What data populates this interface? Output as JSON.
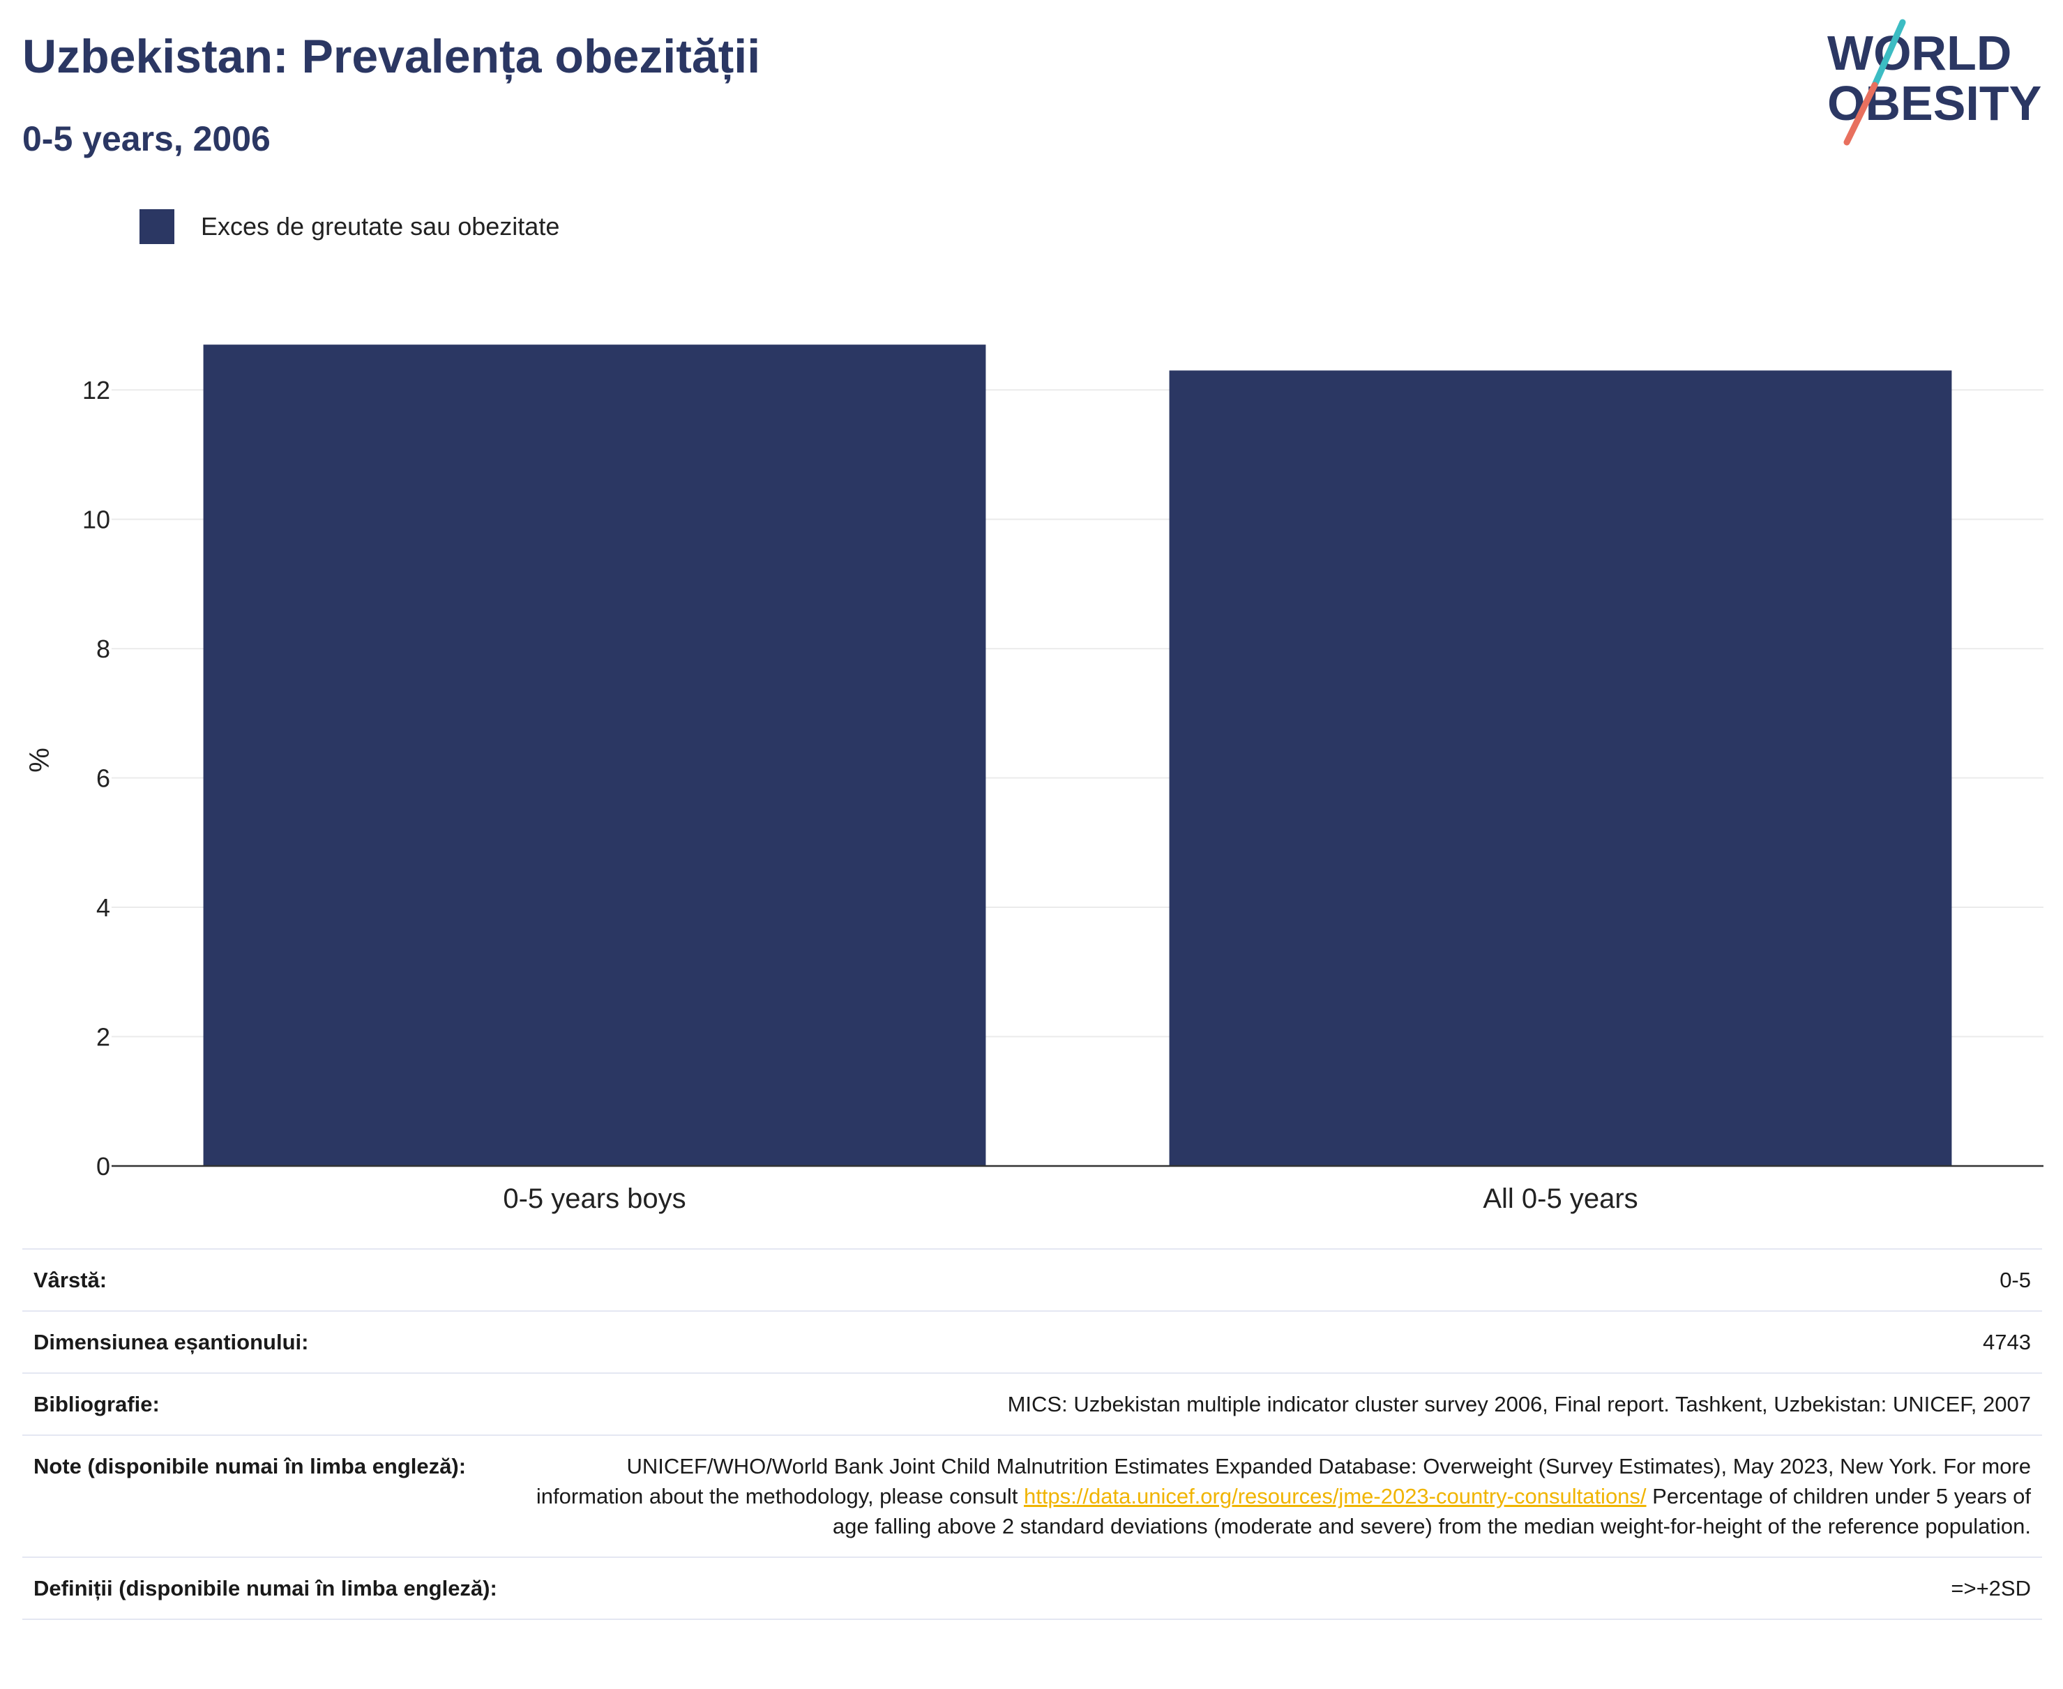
{
  "header": {
    "title": "Uzbekistan: Prevalența obezității",
    "subtitle": "0-5 years, 2006"
  },
  "logo": {
    "line1": "WORLD",
    "line2": "OBESITY",
    "colors": {
      "text": "#2b3763",
      "slash_top": "#3cbcc3",
      "slash_bottom": "#e8705e"
    }
  },
  "colors": {
    "bar": "#2b3763",
    "grid": "#ebebeb",
    "axis": "#333333",
    "link": "#f0b400"
  },
  "chart_data": {
    "type": "bar",
    "categories": [
      "0-5 years boys",
      "All 0-5 years"
    ],
    "series": [
      {
        "name": "Exces de greutate sau obezitate",
        "values": [
          12.7,
          12.3
        ]
      }
    ],
    "xlabel": "",
    "ylabel": "%",
    "ylim": [
      0,
      13.5
    ],
    "yticks": [
      0,
      2,
      4,
      6,
      8,
      10,
      12
    ],
    "grid": true,
    "legend_position": "top-left"
  },
  "info": {
    "rows": [
      {
        "key": "Vârstă:",
        "value": "0-5"
      },
      {
        "key": "Dimensiunea eșantionului:",
        "value": "4743"
      },
      {
        "key": "Bibliografie:",
        "value": "MICS: Uzbekistan multiple indicator cluster survey 2006, Final report. Tashkent, Uzbekistan: UNICEF, 2007"
      },
      {
        "key": "Note (disponibile numai în limba engleză):",
        "value_before_link": "UNICEF/WHO/World Bank Joint Child Malnutrition Estimates Expanded Database: Overweight (Survey Estimates), May 2023, New York. For more information about the methodology, please consult ",
        "link": "https://data.unicef.org/resources/jme-2023-country-consultations/",
        "value_after_link": " Percentage of children under 5 years of age falling above 2 standard deviations (moderate and severe) from the median weight-for-height of the reference population."
      },
      {
        "key": "Definiții (disponibile numai în limba engleză):",
        "value": "=>+2SD"
      }
    ]
  }
}
